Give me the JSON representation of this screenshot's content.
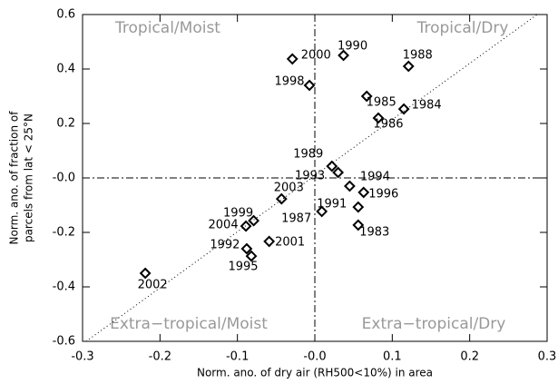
{
  "chart_data": {
    "type": "scatter",
    "xlabel": "Norm. ano. of dry air (RH500<10%) in area",
    "ylabel": [
      "Norm. ano. of fraction of",
      "parcels from lat < 25°N"
    ],
    "annotations": [
      "Tropical/Moist",
      "Tropical/Dry",
      "Extra−tropical/Moist",
      "Extra−tropical/Dry"
    ],
    "point_labels": [
      "2000",
      "1990",
      "1988",
      "1998",
      "1985",
      "1986",
      "1984",
      "1989",
      "1993",
      "1994",
      "1996",
      "1987",
      "1991",
      "1983",
      "2003",
      "1999",
      "2004",
      "1992",
      "1995",
      "2001",
      "2002"
    ],
    "x": [
      -0.029,
      0.037,
      0.121,
      -0.007,
      0.067,
      0.082,
      0.115,
      0.022,
      0.03,
      0.045,
      0.063,
      0.009,
      0.056,
      0.056,
      -0.043,
      -0.079,
      -0.089,
      -0.088,
      -0.082,
      -0.059,
      -0.219
    ],
    "values": [
      0.437,
      0.45,
      0.41,
      0.34,
      0.3,
      0.22,
      0.253,
      0.043,
      0.02,
      -0.03,
      -0.053,
      -0.123,
      -0.107,
      -0.173,
      -0.077,
      -0.157,
      -0.177,
      -0.26,
      -0.287,
      -0.233,
      -0.35
    ],
    "color": "#000000",
    "xlim": [
      -0.3,
      0.3
    ],
    "ylim": [
      -0.6,
      0.6
    ],
    "xticks": [
      -0.3,
      -0.2,
      -0.1,
      {
        "value": 0,
        "label": "-0.0"
      },
      0.1,
      0.2,
      0.3
    ],
    "yticks": [
      -0.6,
      -0.4,
      -0.2,
      {
        "value": 0,
        "label": "-0.0"
      },
      0.2,
      0.4,
      0.6
    ]
  }
}
